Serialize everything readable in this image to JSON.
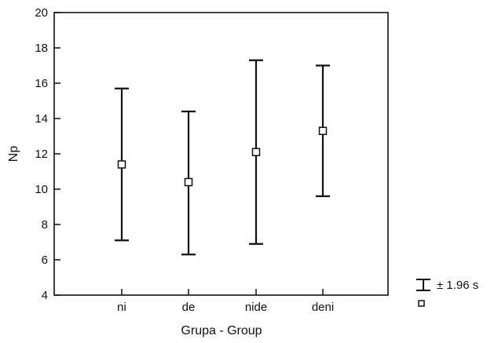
{
  "chart_data": {
    "type": "errorbar",
    "title": "",
    "xlabel": "Grupa - Group",
    "ylabel": "Np",
    "ylim": [
      4,
      20
    ],
    "yticks": [
      4,
      6,
      8,
      10,
      12,
      14,
      16,
      18,
      20
    ],
    "categories": [
      "ni",
      "de",
      "nide",
      "deni"
    ],
    "series": [
      {
        "mean": [
          11.4,
          10.4,
          12.1,
          13.3
        ],
        "lower": [
          7.1,
          6.3,
          6.9,
          9.6
        ],
        "upper": [
          15.7,
          14.4,
          17.3,
          17.0
        ]
      }
    ],
    "grid": false,
    "legend": {
      "position": "right",
      "range_label": "± 1.96 s",
      "mean_label": ""
    }
  }
}
